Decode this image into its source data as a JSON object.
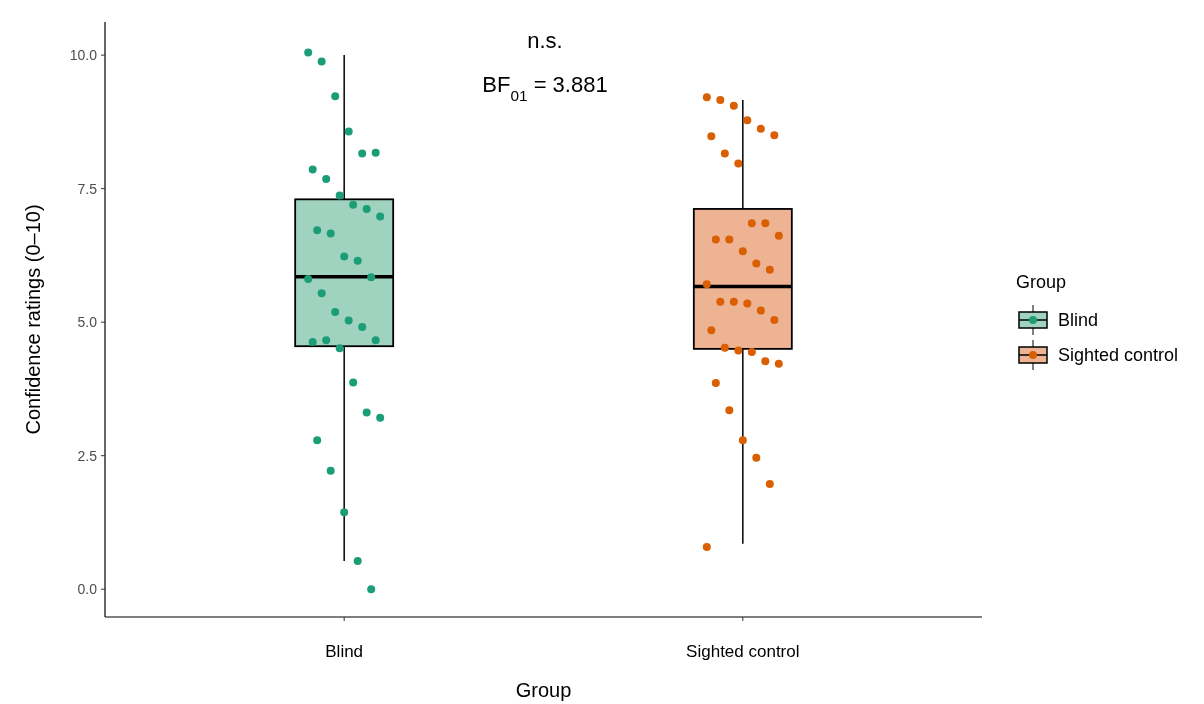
{
  "chart_data": {
    "type": "box",
    "xlabel": "Group",
    "ylabel": "Confidence ratings (0–10)",
    "legend_title": "Group",
    "legend": "right",
    "grid": false,
    "categories": [
      "Blind",
      "Sighted control"
    ],
    "colors": [
      "#9fd3c0",
      "#eeb392"
    ],
    "boxes": [
      {
        "low": 0.53,
        "q1": 4.55,
        "median": 5.85,
        "q3": 7.3,
        "high": 10.0
      },
      {
        "low": 0.85,
        "q1": 4.5,
        "median": 5.67,
        "q3": 7.12,
        "high": 9.16
      }
    ],
    "ylim": [
      -0.52,
      10.62
    ],
    "yticks": [
      {
        "value": 0,
        "label": "0.0"
      },
      {
        "value": 2.5,
        "label": "2.5"
      },
      {
        "value": 5,
        "label": "5.0"
      },
      {
        "value": 7.5,
        "label": "7.5"
      },
      {
        "value": 10,
        "label": "10.0"
      }
    ],
    "annotations": [
      "n.s.",
      "BF$_{01}$ = 3.881"
    ],
    "series": [
      {
        "type": "scatter",
        "name": "Blind",
        "color": "#1b9e77",
        "marker": "circle",
        "x": [
          "Blind",
          "Blind",
          "Blind",
          "Blind",
          "Blind",
          "Blind",
          "Blind",
          "Blind",
          "Blind",
          "Blind",
          "Blind",
          "Blind",
          "Blind",
          "Blind",
          "Blind",
          "Blind",
          "Blind",
          "Blind",
          "Blind",
          "Blind",
          "Blind",
          "Blind",
          "Blind",
          "Blind",
          "Blind",
          "Blind",
          "Blind",
          "Blind",
          "Blind",
          "Blind",
          "Blind",
          "Blind",
          "Blind",
          "Blind"
        ],
        "values": [
          10.05,
          9.88,
          9.23,
          8.57,
          8.16,
          8.17,
          7.86,
          7.68,
          7.37,
          7.2,
          7.12,
          6.98,
          6.72,
          6.66,
          6.23,
          6.15,
          5.84,
          5.81,
          5.54,
          5.19,
          5.03,
          4.91,
          4.66,
          4.63,
          4.66,
          4.51,
          3.87,
          3.31,
          3.21,
          2.79,
          2.22,
          1.44,
          0.53,
          0.0
        ]
      },
      {
        "type": "scatter",
        "name": "Sighted control",
        "color": "#d95f02",
        "marker": "circle",
        "x": [
          "Sighted control",
          "Sighted control",
          "Sighted control",
          "Sighted control",
          "Sighted control",
          "Sighted control",
          "Sighted control",
          "Sighted control",
          "Sighted control",
          "Sighted control",
          "Sighted control",
          "Sighted control",
          "Sighted control",
          "Sighted control",
          "Sighted control",
          "Sighted control",
          "Sighted control",
          "Sighted control",
          "Sighted control",
          "Sighted control",
          "Sighted control",
          "Sighted control",
          "Sighted control",
          "Sighted control",
          "Sighted control",
          "Sighted control",
          "Sighted control",
          "Sighted control",
          "Sighted control",
          "Sighted control",
          "Sighted control",
          "Sighted control",
          "Sighted control",
          "Sighted control",
          "Sighted control"
        ],
        "values": [
          9.21,
          9.16,
          9.05,
          8.78,
          8.62,
          8.5,
          8.48,
          8.16,
          7.97,
          6.85,
          6.85,
          6.62,
          6.55,
          6.55,
          6.33,
          6.1,
          5.98,
          5.71,
          5.38,
          5.38,
          5.35,
          5.22,
          5.04,
          4.85,
          4.52,
          4.47,
          4.44,
          4.27,
          4.22,
          3.86,
          3.35,
          2.79,
          2.46,
          1.97,
          0.79
        ]
      }
    ]
  }
}
